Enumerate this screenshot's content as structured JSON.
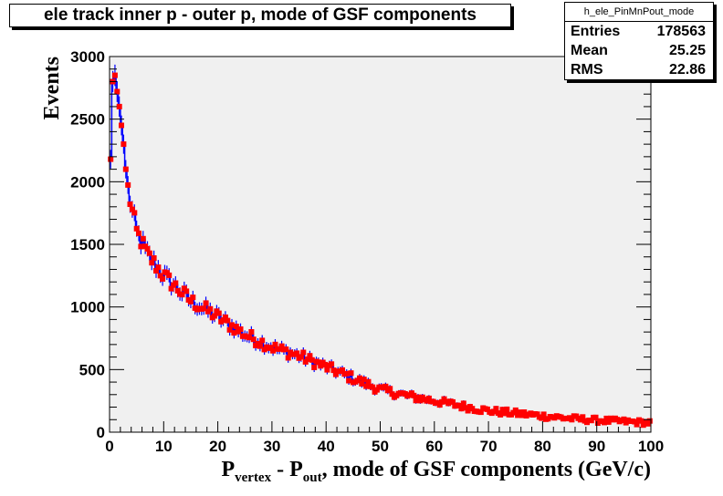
{
  "chart_data": {
    "type": "histogram",
    "title": "ele track inner p - outer p, mode of GSF components",
    "xlabel": {
      "main": "P",
      "sub1": "vertex",
      "mid": " - P",
      "sub2": "out",
      "rest": ", mode of GSF components (GeV/c)"
    },
    "ylabel": "Events",
    "xlim": [
      0,
      100
    ],
    "ylim": [
      0,
      3000
    ],
    "x_ticks": [
      "0",
      "10",
      "20",
      "30",
      "40",
      "50",
      "60",
      "70",
      "80",
      "90",
      "100"
    ],
    "y_ticks": [
      "0",
      "500",
      "1000",
      "1500",
      "2000",
      "2500",
      "3000"
    ],
    "bin_width": 0.4,
    "spike_bins": [
      {
        "x": 0.2,
        "y": 2180
      },
      {
        "x": 0.6,
        "y": 2800
      },
      {
        "x": 1.0,
        "y": 2850
      },
      {
        "x": 1.4,
        "y": 2720
      },
      {
        "x": 1.8,
        "y": 2600
      },
      {
        "x": 2.2,
        "y": 2450
      },
      {
        "x": 2.6,
        "y": 2300
      },
      {
        "x": 3.0,
        "y": 2100
      }
    ],
    "decay_curve": [
      {
        "x": 3,
        "y": 2050
      },
      {
        "x": 4,
        "y": 1800
      },
      {
        "x": 5,
        "y": 1600
      },
      {
        "x": 7,
        "y": 1420
      },
      {
        "x": 10,
        "y": 1250
      },
      {
        "x": 15,
        "y": 1050
      },
      {
        "x": 20,
        "y": 920
      },
      {
        "x": 25,
        "y": 780
      },
      {
        "x": 30,
        "y": 680
      },
      {
        "x": 35,
        "y": 610
      },
      {
        "x": 40,
        "y": 520
      },
      {
        "x": 45,
        "y": 430
      },
      {
        "x": 50,
        "y": 340
      },
      {
        "x": 55,
        "y": 290
      },
      {
        "x": 60,
        "y": 250
      },
      {
        "x": 65,
        "y": 210
      },
      {
        "x": 70,
        "y": 170
      },
      {
        "x": 75,
        "y": 150
      },
      {
        "x": 80,
        "y": 130
      },
      {
        "x": 85,
        "y": 110
      },
      {
        "x": 90,
        "y": 95
      },
      {
        "x": 95,
        "y": 85
      },
      {
        "x": 100,
        "y": 75
      }
    ],
    "noise_amplitude": 30,
    "colors": {
      "line": "#0000ff",
      "marker": "#ff0000",
      "frame_fill": "#f0f0f0"
    }
  },
  "stats": {
    "name": "h_ele_PinMnPout_mode",
    "rows": [
      {
        "label": "Entries",
        "value": "178563"
      },
      {
        "label": "Mean",
        "value": "25.25"
      },
      {
        "label": "RMS",
        "value": "22.86"
      }
    ]
  }
}
